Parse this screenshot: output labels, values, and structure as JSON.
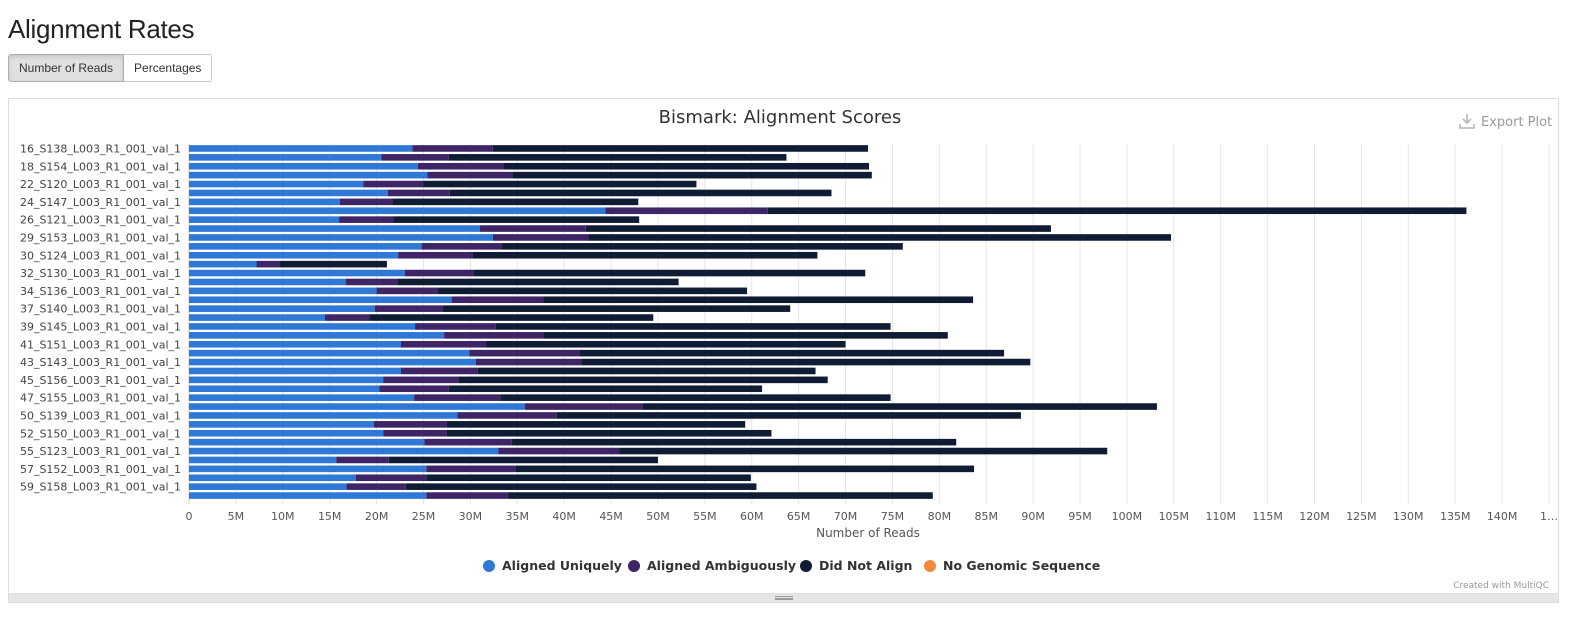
{
  "page": {
    "title": "Alignment Rates"
  },
  "toggle": {
    "reads_label": "Number of Reads",
    "percent_label": "Percentages"
  },
  "export_label": "Export Plot",
  "credit": "Created with MultiQC",
  "colors": {
    "aligned_uniquely": "#2f78d6",
    "aligned_ambiguously": "#3e2565",
    "did_not_align": "#0f1c33",
    "no_genomic": "#f08a3a",
    "grid": "#e6e6e6"
  },
  "chart_data": {
    "type": "bar",
    "orientation": "horizontal",
    "stacked": true,
    "title": "Bismark: Alignment Scores",
    "xlabel": "Number of Reads",
    "ylabel": "",
    "xlim": [
      0,
      145000000
    ],
    "x_ticks": [
      "0",
      "5M",
      "10M",
      "15M",
      "20M",
      "25M",
      "30M",
      "35M",
      "40M",
      "45M",
      "50M",
      "55M",
      "60M",
      "65M",
      "70M",
      "75M",
      "80M",
      "85M",
      "90M",
      "95M",
      "100M",
      "105M",
      "110M",
      "115M",
      "120M",
      "125M",
      "130M",
      "135M",
      "140M",
      "1…"
    ],
    "grid": true,
    "legend_position": "bottom",
    "labels": [
      "16_S138_L003_R1_001_val_1",
      "",
      "18_S154_L003_R1_001_val_1",
      "",
      "22_S120_L003_R1_001_val_1",
      "",
      "24_S147_L003_R1_001_val_1",
      "",
      "26_S121_L003_R1_001_val_1",
      "",
      "29_S153_L003_R1_001_val_1",
      "",
      "30_S124_L003_R1_001_val_1",
      "",
      "32_S130_L003_R1_001_val_1",
      "",
      "34_S136_L003_R1_001_val_1",
      "",
      "37_S140_L003_R1_001_val_1",
      "",
      "39_S145_L003_R1_001_val_1",
      "",
      "41_S151_L003_R1_001_val_1",
      "",
      "43_S143_L003_R1_001_val_1",
      "",
      "45_S156_L003_R1_001_val_1",
      "",
      "47_S155_L003_R1_001_val_1",
      "",
      "50_S139_L003_R1_001_val_1",
      "",
      "52_S150_L003_R1_001_val_1",
      "",
      "55_S123_L003_R1_001_val_1",
      "",
      "57_S152_L003_R1_001_val_1",
      "",
      "59_S158_L003_R1_001_val_1",
      ""
    ],
    "series": [
      {
        "name": "Aligned Uniquely",
        "color": "#2f78d6",
        "values": [
          23.8,
          20.5,
          24.4,
          25.4,
          18.6,
          21.2,
          16.1,
          44.4,
          16.0,
          31.0,
          32.4,
          24.8,
          22.3,
          7.2,
          23.0,
          16.7,
          20.0,
          28.0,
          19.8,
          14.5,
          24.1,
          27.2,
          22.6,
          29.9,
          30.6,
          22.6,
          20.7,
          20.3,
          24.0,
          35.8,
          28.6,
          19.7,
          20.7,
          25.1,
          33.0,
          15.7,
          25.3,
          17.8,
          16.8,
          25.3
        ]
      },
      {
        "name": "Aligned Ambiguously",
        "color": "#3e2565",
        "values": [
          8.6,
          7.2,
          9.1,
          9.1,
          6.4,
          6.6,
          5.6,
          17.3,
          5.8,
          11.3,
          10.2,
          8.5,
          7.9,
          2.5,
          7.3,
          5.5,
          6.6,
          9.8,
          7.2,
          4.7,
          8.6,
          10.6,
          9.0,
          11.7,
          11.3,
          8.2,
          8.0,
          7.4,
          9.2,
          12.6,
          10.6,
          7.8,
          6.8,
          9.3,
          12.9,
          5.6,
          9.5,
          7.5,
          6.3,
          8.7
        ]
      },
      {
        "name": "Did Not Align",
        "color": "#0f1c33",
        "values": [
          40.0,
          36.0,
          39.0,
          38.3,
          29.1,
          40.7,
          26.2,
          74.5,
          26.2,
          49.6,
          62.1,
          42.8,
          36.8,
          11.4,
          41.8,
          30.0,
          32.9,
          45.8,
          37.1,
          30.3,
          42.1,
          43.1,
          38.4,
          45.3,
          47.8,
          36.0,
          39.4,
          33.4,
          41.6,
          54.8,
          49.5,
          31.8,
          34.6,
          47.4,
          52.0,
          28.7,
          48.9,
          34.6,
          37.4,
          45.3
        ]
      },
      {
        "name": "No Genomic Sequence",
        "color": "#f08a3a",
        "values": [
          0,
          0,
          0,
          0,
          0,
          0,
          0,
          0,
          0,
          0,
          0,
          0,
          0,
          0,
          0,
          0,
          0,
          0,
          0,
          0,
          0,
          0,
          0,
          0,
          0,
          0,
          0,
          0,
          0,
          0,
          0,
          0,
          0,
          0,
          0,
          0,
          0,
          0,
          0,
          0
        ]
      }
    ],
    "values_unit": "millions of reads"
  }
}
